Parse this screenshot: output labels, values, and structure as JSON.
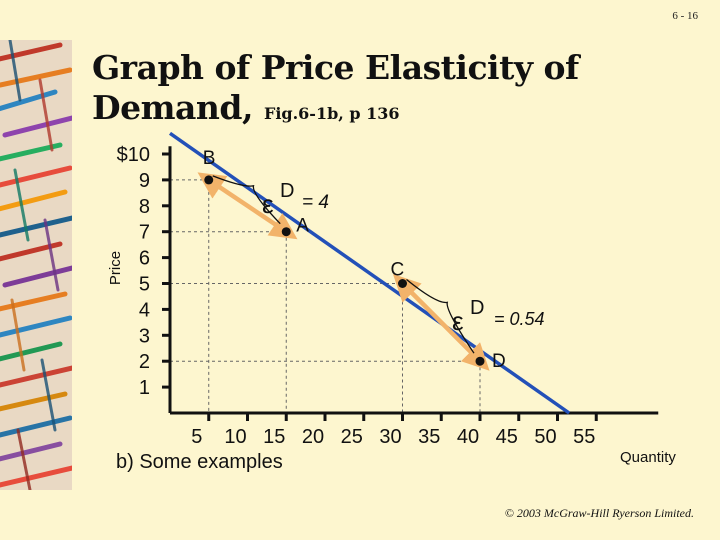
{
  "slide": {
    "number": "6 - 16",
    "title_line1": "Graph of Price Elasticity of",
    "title_line2": "Demand,",
    "title_ref": "Fig.6-1b, p 136",
    "copyright": "© 2003 McGraw-Hill Ryerson Limited."
  },
  "chart_data": {
    "type": "line",
    "xlabel": "Quantity",
    "ylabel": "Price",
    "caption": "b) Some examples",
    "xlim": [
      0,
      60
    ],
    "ylim": [
      0,
      10
    ],
    "x_ticks": [
      5,
      10,
      15,
      20,
      25,
      30,
      35,
      40,
      45,
      50,
      55
    ],
    "y_ticks": [
      1,
      2,
      3,
      4,
      5,
      6,
      7,
      8,
      9,
      10
    ],
    "y_tick_labels": [
      "1",
      "2",
      "3",
      "4",
      "5",
      "6",
      "7",
      "8",
      "9",
      "$10"
    ],
    "demand_line": [
      {
        "x": 0,
        "y": 10.8
      },
      {
        "x": 51.5,
        "y": 0
      }
    ],
    "points": [
      {
        "label": "B",
        "x": 5,
        "y": 9
      },
      {
        "label": "A",
        "x": 15,
        "y": 7
      },
      {
        "label": "C",
        "x": 30,
        "y": 5
      },
      {
        "label": "D",
        "x": 40,
        "y": 2
      }
    ],
    "annotations": [
      {
        "symbol": "ε",
        "superscript": "D",
        "text": "= 4"
      },
      {
        "symbol": "ε",
        "superscript": "D",
        "text": "= 0.54"
      }
    ]
  }
}
